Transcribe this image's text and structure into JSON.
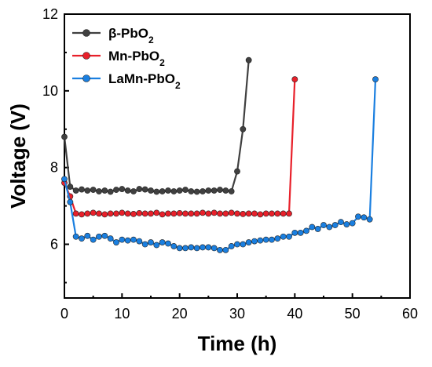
{
  "chart_data": {
    "type": "line",
    "xlabel": "Time (h)",
    "ylabel": "Voltage (V)",
    "xlim": [
      0,
      60
    ],
    "ylim": [
      4.6,
      12
    ],
    "xticks": [
      "0",
      "10",
      "20",
      "30",
      "40",
      "50",
      "60"
    ],
    "yticks": [
      "6",
      "8",
      "10",
      "12"
    ],
    "xtick_values": [
      0,
      10,
      20,
      30,
      40,
      50,
      60
    ],
    "ytick_values": [
      6,
      8,
      10,
      12
    ],
    "grid": false,
    "legend_position": "top-left",
    "series": [
      {
        "name": "β-PbO",
        "name_sub": "2",
        "color": "#404040",
        "marker": "circle",
        "x": [
          0,
          1,
          2,
          3,
          4,
          5,
          6,
          7,
          8,
          9,
          10,
          11,
          12,
          13,
          14,
          15,
          16,
          17,
          18,
          19,
          20,
          21,
          22,
          23,
          24,
          25,
          26,
          27,
          28,
          29,
          30,
          31,
          32
        ],
        "y": [
          8.8,
          7.5,
          7.4,
          7.43,
          7.4,
          7.42,
          7.38,
          7.4,
          7.37,
          7.42,
          7.44,
          7.4,
          7.38,
          7.44,
          7.43,
          7.4,
          7.37,
          7.38,
          7.4,
          7.38,
          7.4,
          7.42,
          7.38,
          7.37,
          7.38,
          7.4,
          7.4,
          7.42,
          7.4,
          7.38,
          7.9,
          9.0,
          10.8
        ]
      },
      {
        "name": "Mn-PbO",
        "name_sub": "2",
        "color": "#e8202a",
        "marker": "circle",
        "x": [
          0,
          1,
          2,
          3,
          4,
          5,
          6,
          7,
          8,
          9,
          10,
          11,
          12,
          13,
          14,
          15,
          16,
          17,
          18,
          19,
          20,
          21,
          22,
          23,
          24,
          25,
          26,
          27,
          28,
          29,
          30,
          31,
          32,
          33,
          34,
          35,
          36,
          37,
          38,
          39,
          40
        ],
        "y": [
          7.6,
          7.25,
          6.8,
          6.78,
          6.8,
          6.82,
          6.8,
          6.78,
          6.8,
          6.8,
          6.82,
          6.8,
          6.79,
          6.81,
          6.8,
          6.8,
          6.82,
          6.78,
          6.8,
          6.8,
          6.81,
          6.8,
          6.8,
          6.8,
          6.82,
          6.8,
          6.82,
          6.8,
          6.8,
          6.82,
          6.8,
          6.79,
          6.8,
          6.8,
          6.78,
          6.8,
          6.8,
          6.8,
          6.8,
          6.8,
          10.3
        ]
      },
      {
        "name": "LaMn-PbO",
        "name_sub": "2",
        "color": "#1a7fe0",
        "marker": "circle",
        "x": [
          0,
          1,
          2,
          3,
          4,
          5,
          6,
          7,
          8,
          9,
          10,
          11,
          12,
          13,
          14,
          15,
          16,
          17,
          18,
          19,
          20,
          21,
          22,
          23,
          24,
          25,
          26,
          27,
          28,
          29,
          30,
          31,
          32,
          33,
          34,
          35,
          36,
          37,
          38,
          39,
          40,
          41,
          42,
          43,
          44,
          45,
          46,
          47,
          48,
          49,
          50,
          51,
          52,
          53,
          54
        ],
        "y": [
          7.7,
          7.1,
          6.2,
          6.15,
          6.22,
          6.12,
          6.2,
          6.22,
          6.15,
          6.05,
          6.12,
          6.1,
          6.12,
          6.08,
          6.0,
          6.05,
          5.98,
          6.05,
          6.02,
          5.95,
          5.9,
          5.9,
          5.92,
          5.9,
          5.92,
          5.92,
          5.9,
          5.85,
          5.85,
          5.95,
          6.0,
          6.0,
          6.05,
          6.08,
          6.1,
          6.12,
          6.12,
          6.15,
          6.2,
          6.2,
          6.3,
          6.3,
          6.35,
          6.45,
          6.4,
          6.5,
          6.45,
          6.5,
          6.58,
          6.52,
          6.55,
          6.72,
          6.7,
          6.65,
          10.3
        ]
      }
    ]
  }
}
